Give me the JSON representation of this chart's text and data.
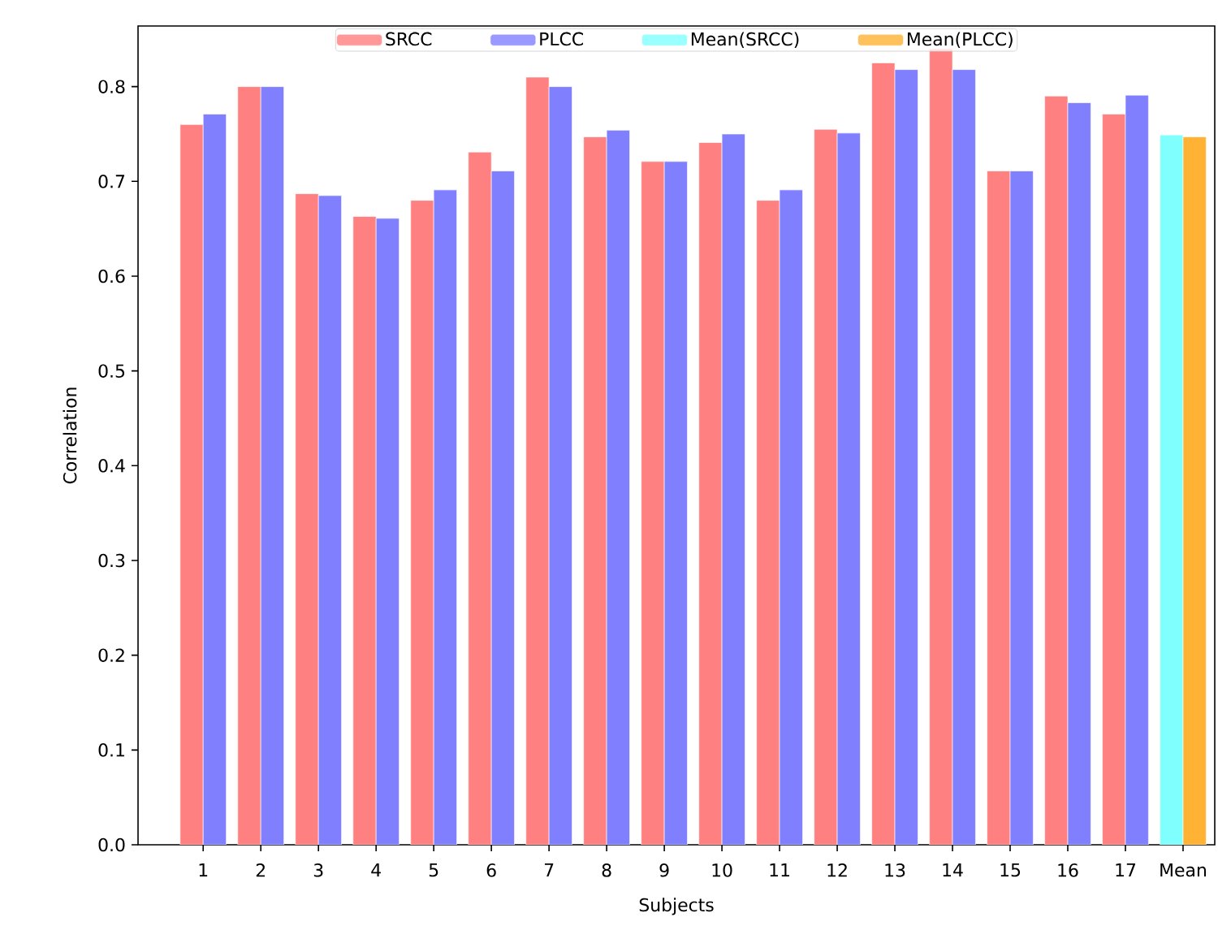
{
  "chart_data": {
    "type": "bar",
    "xlabel": "Subjects",
    "ylabel": "Correlation",
    "categories": [
      "1",
      "2",
      "3",
      "4",
      "5",
      "6",
      "7",
      "8",
      "9",
      "10",
      "11",
      "12",
      "13",
      "14",
      "15",
      "16",
      "17",
      "Mean"
    ],
    "series": [
      {
        "name": "SRCC",
        "color": "#ff8080",
        "values": [
          0.76,
          0.8,
          0.687,
          0.663,
          0.68,
          0.731,
          0.81,
          0.747,
          0.721,
          0.741,
          0.68,
          0.755,
          0.825,
          0.84,
          0.711,
          0.79,
          0.771,
          null
        ]
      },
      {
        "name": "PLCC",
        "color": "#8080ff",
        "values": [
          0.771,
          0.8,
          0.685,
          0.661,
          0.691,
          0.711,
          0.8,
          0.754,
          0.721,
          0.75,
          0.691,
          0.751,
          0.818,
          0.818,
          0.711,
          0.783,
          0.791,
          null
        ]
      },
      {
        "name": "Mean(SRCC)",
        "color": "#80ffff",
        "values": [
          null,
          null,
          null,
          null,
          null,
          null,
          null,
          null,
          null,
          null,
          null,
          null,
          null,
          null,
          null,
          null,
          null,
          0.749
        ]
      },
      {
        "name": "Mean(PLCC)",
        "color": "#ffb233",
        "values": [
          null,
          null,
          null,
          null,
          null,
          null,
          null,
          null,
          null,
          null,
          null,
          null,
          null,
          null,
          null,
          null,
          null,
          0.747
        ]
      }
    ],
    "ylim": [
      0,
      0.864
    ],
    "yticks": [
      {
        "value": 0,
        "label": "0.0"
      },
      0.1,
      0.2,
      0.3,
      0.4,
      0.5,
      0.6,
      0.7,
      0.8
    ],
    "grid": false,
    "legend": "top"
  }
}
